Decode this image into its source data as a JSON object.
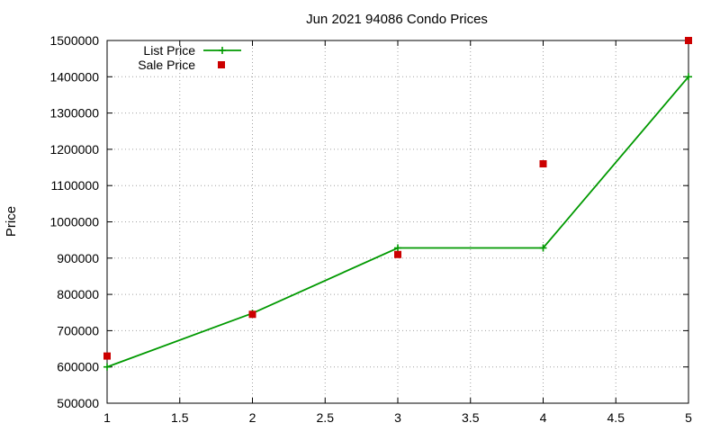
{
  "chart_data": {
    "type": "line",
    "title": "Jun 2021 94086 Condo Prices",
    "xlabel": "",
    "ylabel": "Price",
    "xlim": [
      1,
      5
    ],
    "ylim": [
      500000,
      1500000
    ],
    "xticks": [
      "1",
      "1.5",
      "2",
      "2.5",
      "3",
      "3.5",
      "4",
      "4.5",
      "5"
    ],
    "yticks": [
      "500000",
      "600000",
      "700000",
      "800000",
      "900000",
      "1000000",
      "1100000",
      "1200000",
      "1300000",
      "1400000",
      "1500000"
    ],
    "grid": true,
    "legend_position": "top-left",
    "series": [
      {
        "name": "List Price",
        "style": "line-points",
        "marker": "plus",
        "color": "#009900",
        "x": [
          1,
          2,
          3,
          4,
          5
        ],
        "y": [
          600000,
          748000,
          928000,
          928000,
          1400000
        ]
      },
      {
        "name": "Sale Price",
        "style": "points",
        "marker": "square",
        "color": "#cc0000",
        "x": [
          1,
          2,
          3,
          4,
          5
        ],
        "y": [
          630000,
          745000,
          910000,
          1160000,
          1500000
        ]
      }
    ]
  }
}
